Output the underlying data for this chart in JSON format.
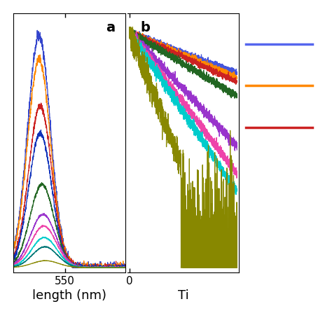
{
  "panel_a_label": "a",
  "panel_b_label": "b",
  "xlabel_a": "length (nm)",
  "xlabel_b": "Ti",
  "xtick_a": "550",
  "xtick_b": "0",
  "colors_a": [
    "#3344cc",
    "#ff8800",
    "#cc2222",
    "#1133bb",
    "#226622",
    "#9933cc",
    "#ee44aa",
    "#00cccc",
    "#007777",
    "#888800"
  ],
  "colors_b": [
    "#4455dd",
    "#ff8800",
    "#cc2222",
    "#226622",
    "#9933cc",
    "#ee44aa",
    "#00cccc",
    "#888800"
  ],
  "legend_colors": [
    "#5566ee",
    "#ff8800",
    "#cc2222"
  ],
  "background_color": "#ffffff",
  "fig_width": 4.74,
  "fig_height": 4.74,
  "label_fontsize": 13,
  "tick_fontsize": 11
}
